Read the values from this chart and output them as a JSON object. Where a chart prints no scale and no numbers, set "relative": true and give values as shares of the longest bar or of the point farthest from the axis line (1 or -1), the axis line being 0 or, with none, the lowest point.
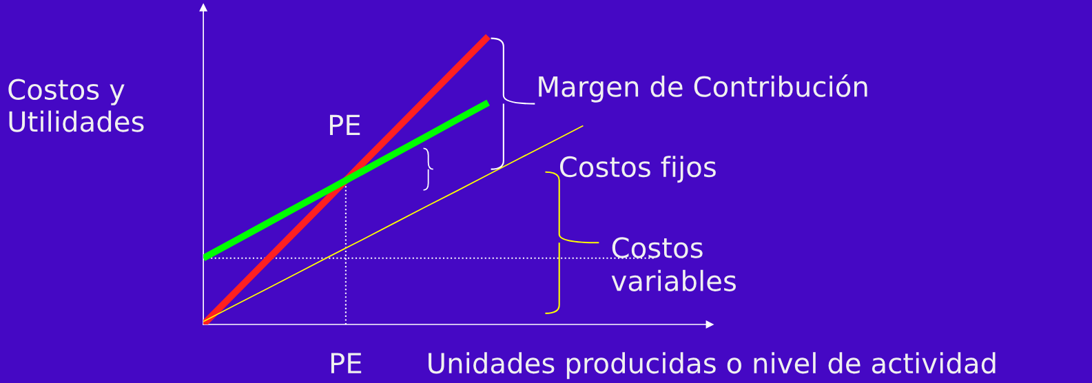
{
  "chart_data": {
    "type": "line",
    "relative": true,
    "ylabel": "Costos y\nUtilidades",
    "xlabel": "Unidades producidas o nivel de actividad",
    "marker": "none",
    "line_style": "solid",
    "legend": false,
    "categories": [
      null,
      null,
      null,
      null,
      null,
      null,
      null,
      null,
      null,
      null,
      null,
      null,
      null,
      null,
      null,
      null,
      null
    ],
    "series": [
      {
        "color": "#ff2020",
        "values": [
          0,
          0.111,
          0.222,
          0.333,
          0.444,
          0.556,
          0.667,
          0.778,
          0.889,
          1,
          null,
          null,
          null,
          null,
          null,
          null,
          null
        ]
      },
      {
        "color": "#00ff00",
        "values": [
          0.23,
          0.29,
          0.35,
          0.41,
          0.47,
          0.53,
          0.59,
          0.65,
          0.71,
          0.77,
          null,
          null,
          null,
          null,
          null,
          null,
          null
        ]
      },
      {
        "color": "#ffff00",
        "values": [
          0.01,
          0.067,
          0.123,
          0.18,
          0.237,
          0.293,
          0.35,
          0.407,
          0.463,
          0.52,
          0.577,
          0.633,
          0.69,
          null,
          null,
          null,
          null
        ]
      }
    ],
    "ref_lines": [
      {
        "axis": "y",
        "value": 0.23,
        "color": "#ffffff",
        "line_style": "dotted"
      }
    ],
    "annotations": [
      "PE",
      "PE",
      "Margen de Contribución",
      "Costos fijos",
      "Costos\nvariables"
    ]
  }
}
